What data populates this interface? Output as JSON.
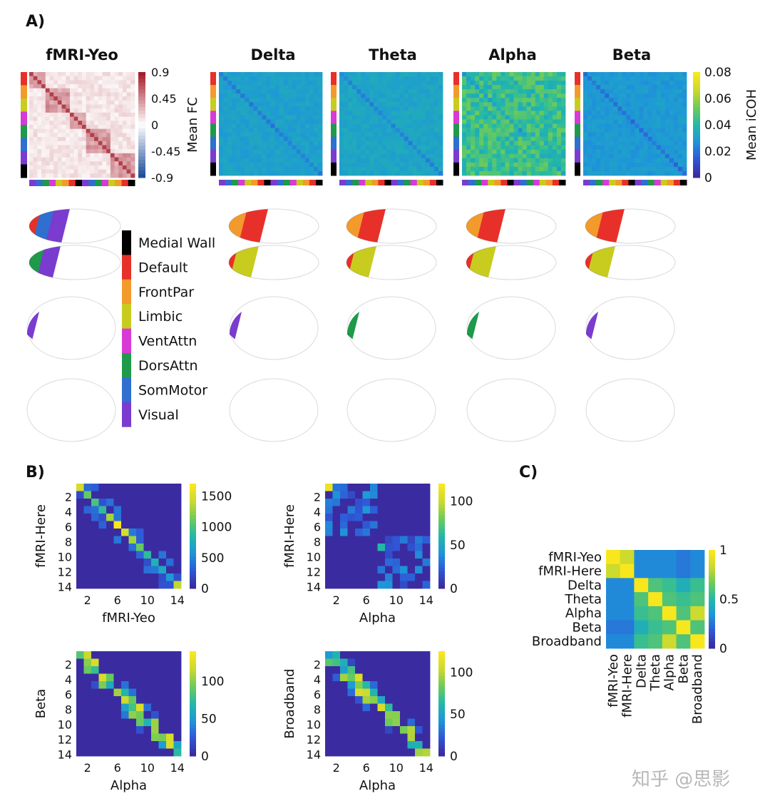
{
  "panels": {
    "a": "A)",
    "b": "B)",
    "c": "C)"
  },
  "panel_a": {
    "titles": [
      "fMRI-Yeo",
      "Delta",
      "Theta",
      "Alpha",
      "Beta"
    ],
    "fc_cbar_ticks": [
      "0.9",
      "0.45",
      "0",
      "-0.45",
      "-0.9"
    ],
    "fc_cbar_label": "Mean FC",
    "icoh_cbar_ticks": [
      "0.08",
      "0.06",
      "0.04",
      "0.02",
      "0"
    ],
    "icoh_cbar_label": "Mean iCOH",
    "legend": [
      {
        "label": "Medial Wall",
        "color": "#000000"
      },
      {
        "label": "Default",
        "color": "#e8302a"
      },
      {
        "label": "FrontPar",
        "color": "#f39a2c"
      },
      {
        "label": "Limbic",
        "color": "#c8cc1e"
      },
      {
        "label": "VentAttn",
        "color": "#d83ad6"
      },
      {
        "label": "DorsAttn",
        "color": "#1f9a4a"
      },
      {
        "label": "SomMotor",
        "color": "#2f6fcf"
      },
      {
        "label": "Visual",
        "color": "#7a3ccf"
      }
    ]
  },
  "chart_data": [
    {
      "type": "heatmap",
      "title": "",
      "xlabel": "fMRI-Yeo",
      "ylabel": "fMRI-Here",
      "x_ticks": [
        "2",
        "6",
        "10",
        "14"
      ],
      "y_ticks": [
        "2",
        "4",
        "6",
        "8",
        "10",
        "12",
        "14"
      ],
      "cbar_ticks": [
        "1500",
        "1000",
        "500",
        "0"
      ],
      "vmax": 1700,
      "diagonal": [
        1500,
        1100,
        1000,
        900,
        1300,
        1700,
        1500,
        1300,
        1100,
        900,
        800,
        700,
        600,
        1400
      ]
    },
    {
      "type": "heatmap",
      "title": "",
      "xlabel": "Alpha",
      "ylabel": "fMRI-Here",
      "x_ticks": [
        "2",
        "6",
        "10",
        "14"
      ],
      "y_ticks": [
        "2",
        "4",
        "6",
        "8",
        "10",
        "12",
        "14"
      ],
      "cbar_ticks": [
        "100",
        "50",
        "0"
      ],
      "vmax": 120
    },
    {
      "type": "heatmap",
      "title": "",
      "xlabel": "Alpha",
      "ylabel": "Beta",
      "x_ticks": [
        "2",
        "6",
        "10",
        "14"
      ],
      "y_ticks": [
        "2",
        "4",
        "6",
        "8",
        "10",
        "12",
        "14"
      ],
      "cbar_ticks": [
        "100",
        "50",
        "0"
      ],
      "vmax": 140
    },
    {
      "type": "heatmap",
      "title": "",
      "xlabel": "Alpha",
      "ylabel": "Broadband",
      "x_ticks": [
        "2",
        "6",
        "10",
        "14"
      ],
      "y_ticks": [
        "2",
        "4",
        "6",
        "8",
        "10",
        "12",
        "14"
      ],
      "cbar_ticks": [
        "100",
        "50",
        "0"
      ],
      "vmax": 125
    },
    {
      "type": "heatmap",
      "title": "",
      "labels": [
        "fMRI-Yeo",
        "fMRI-Here",
        "Delta",
        "Theta",
        "Alpha",
        "Beta",
        "Broadband"
      ],
      "cbar_ticks": [
        "1",
        "0.5",
        "0"
      ],
      "values": [
        [
          1.0,
          0.85,
          0.3,
          0.3,
          0.3,
          0.25,
          0.3
        ],
        [
          0.85,
          1.0,
          0.3,
          0.3,
          0.3,
          0.25,
          0.3
        ],
        [
          0.3,
          0.3,
          1.0,
          0.6,
          0.55,
          0.45,
          0.55
        ],
        [
          0.3,
          0.3,
          0.6,
          1.0,
          0.6,
          0.55,
          0.6
        ],
        [
          0.3,
          0.3,
          0.55,
          0.6,
          1.0,
          0.6,
          0.85
        ],
        [
          0.25,
          0.25,
          0.45,
          0.55,
          0.6,
          1.0,
          0.6
        ],
        [
          0.3,
          0.3,
          0.55,
          0.6,
          0.85,
          0.6,
          1.0
        ]
      ]
    }
  ],
  "watermark": "知乎 @思影"
}
